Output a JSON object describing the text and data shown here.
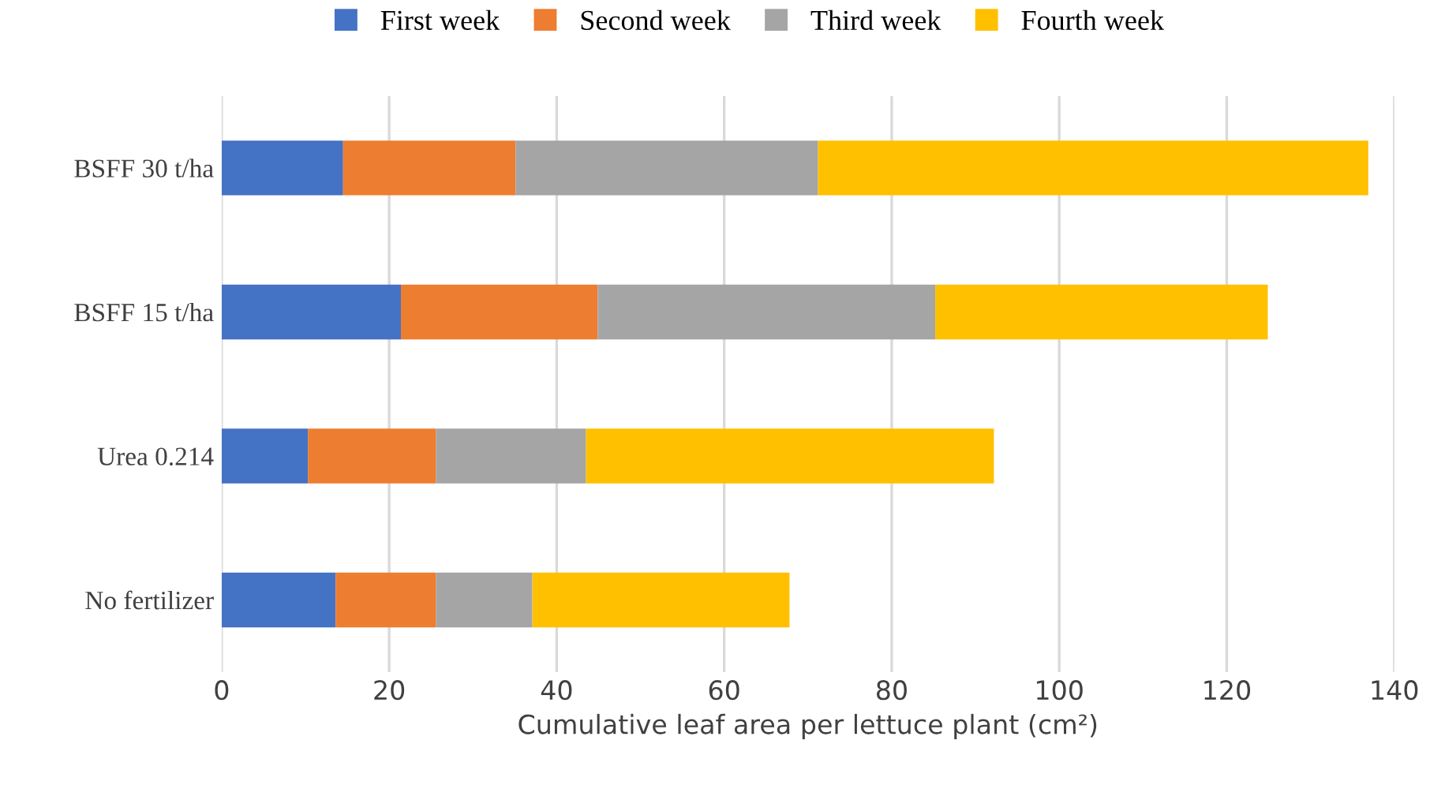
{
  "chart_data": {
    "type": "bar",
    "orientation": "horizontal",
    "stacked": true,
    "categories": [
      "BSFF 30 t/ha",
      "BSFF 15 t/ha",
      "Urea 0.214",
      "No fertilizer"
    ],
    "series": [
      {
        "name": "First week",
        "color": "#4472c4",
        "values": [
          14.5,
          21.4,
          10.3,
          13.6
        ]
      },
      {
        "name": "Second week",
        "color": "#ed7d31",
        "values": [
          20.6,
          23.5,
          15.3,
          12.0
        ]
      },
      {
        "name": "Third week",
        "color": "#a5a5a5",
        "values": [
          36.1,
          40.3,
          17.9,
          11.5
        ]
      },
      {
        "name": "Fourth week",
        "color": "#ffc000",
        "values": [
          65.7,
          39.7,
          48.7,
          30.7
        ]
      }
    ],
    "xlabel": "Cumulative leaf area per lettuce plant (cm²)",
    "xlim": [
      0,
      140
    ],
    "xticks": [
      0,
      20,
      40,
      60,
      80,
      100,
      120,
      140
    ],
    "grid": "x",
    "legend": "top"
  }
}
